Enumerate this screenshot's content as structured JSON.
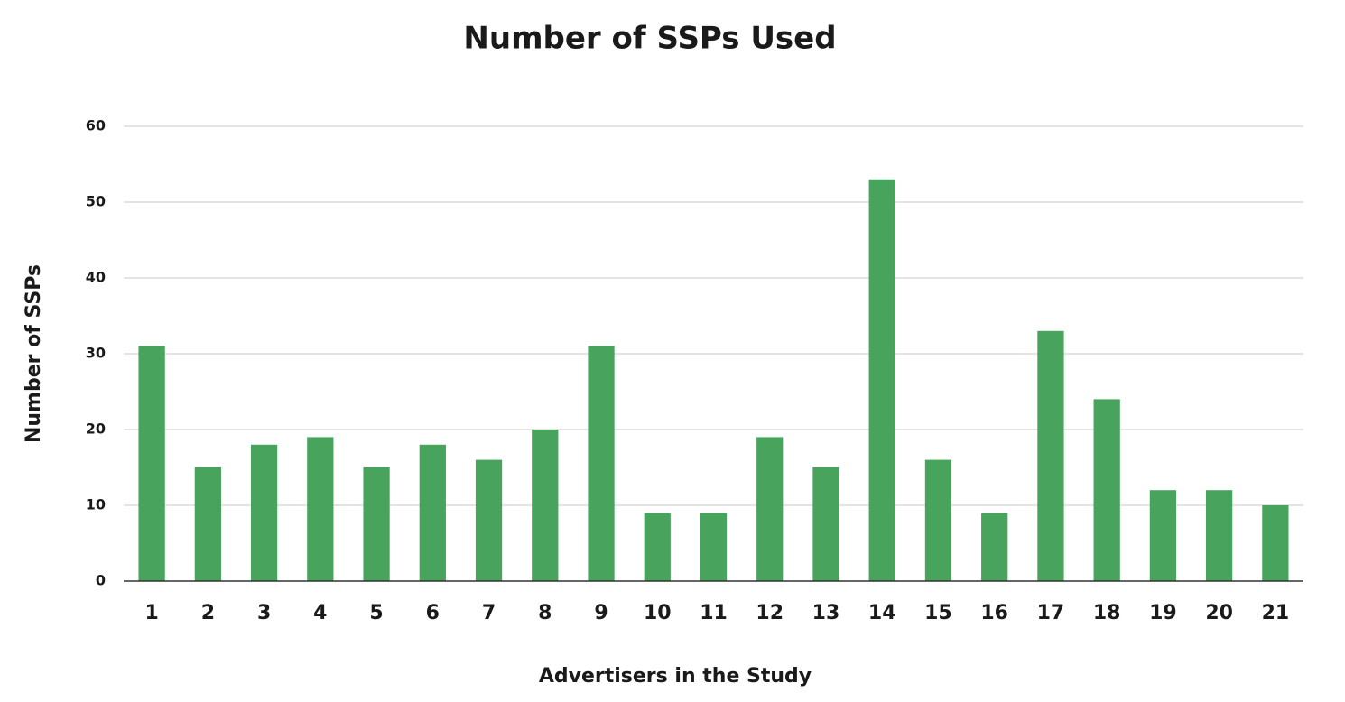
{
  "chart_data": {
    "type": "bar",
    "title": "Number of SSPs Used",
    "x_label": "Advertisers in the Study",
    "y_label": "Number of SSPs",
    "categories": [
      "1",
      "2",
      "3",
      "4",
      "5",
      "6",
      "7",
      "8",
      "9",
      "10",
      "11",
      "12",
      "13",
      "14",
      "15",
      "16",
      "17",
      "18",
      "19",
      "20",
      "21"
    ],
    "values": [
      31,
      15,
      18,
      19,
      15,
      18,
      16,
      20,
      31,
      9,
      9,
      19,
      15,
      53,
      16,
      9,
      33,
      24,
      12,
      12,
      10
    ],
    "color": "#48a35c",
    "ylim": [
      0,
      60
    ],
    "yticks": [
      0,
      10,
      20,
      30,
      40,
      50,
      60
    ],
    "grid": true
  }
}
